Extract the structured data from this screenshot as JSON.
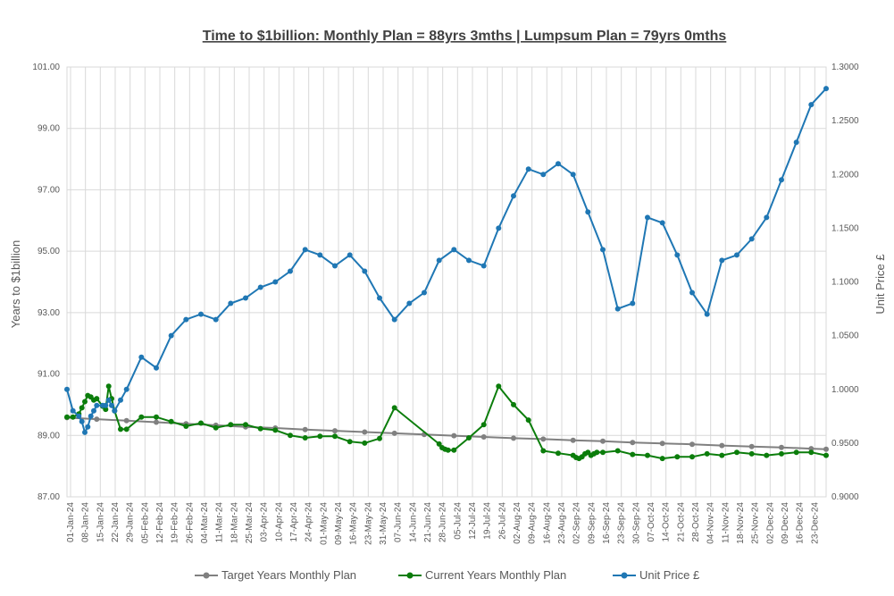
{
  "chart_data": {
    "type": "line",
    "title": "Time to $1billion: Monthly Plan = 88yrs 3mths | Lumpsum Plan = 79yrs 0mths",
    "y_left_label": "Years to $1billion",
    "y_right_label": "Unit Price £",
    "y_left_range": [
      87,
      101
    ],
    "y_right_range": [
      0.9,
      1.3
    ],
    "y_left_ticks": [
      "87.00",
      "89.00",
      "91.00",
      "93.00",
      "95.00",
      "97.00",
      "99.00",
      "101.00"
    ],
    "y_right_ticks": [
      "0.9000",
      "0.9500",
      "1.0000",
      "1.0500",
      "1.1000",
      "1.1500",
      "1.2000",
      "1.2500",
      "1.3000"
    ],
    "x_ticks": [
      "01-Jan-24",
      "08-Jan-24",
      "15-Jan-24",
      "22-Jan-24",
      "29-Jan-24",
      "05-Feb-24",
      "12-Feb-24",
      "19-Feb-24",
      "26-Feb-24",
      "04-Mar-24",
      "11-Mar-24",
      "18-Mar-24",
      "25-Mar-24",
      "03-Apr-24",
      "10-Apr-24",
      "17-Apr-24",
      "24-Apr-24",
      "01-May-24",
      "09-May-24",
      "16-May-24",
      "23-May-24",
      "31-May-24",
      "07-Jun-24",
      "14-Jun-24",
      "21-Jun-24",
      "28-Jun-24",
      "05-Jul-24",
      "12-Jul-24",
      "19-Jul-24",
      "26-Jul-24",
      "02-Aug-24",
      "09-Aug-24",
      "16-Aug-24",
      "23-Aug-24",
      "02-Sep-24",
      "09-Sep-24",
      "16-Sep-24",
      "23-Sep-24",
      "30-Sep-24",
      "07-Oct-24",
      "14-Oct-24",
      "21-Oct-24",
      "28-Oct-24",
      "04-Nov-24",
      "11-Nov-24",
      "18-Nov-24",
      "25-Nov-24",
      "02-Dec-24",
      "09-Dec-24",
      "16-Dec-24",
      "23-Dec-24"
    ],
    "grid": true,
    "legend_position": "bottom",
    "series": [
      {
        "name": "Target Years Monthly Plan",
        "axis": "left",
        "color": "#808080",
        "x": [
          0,
          10,
          20,
          30,
          40,
          50,
          60,
          70,
          80,
          90,
          100,
          110,
          120,
          130,
          140,
          150,
          160,
          170,
          180,
          190,
          200,
          210,
          220,
          230,
          240,
          250,
          255
        ],
        "values": [
          89.58,
          89.53,
          89.48,
          89.43,
          89.38,
          89.33,
          89.28,
          89.24,
          89.19,
          89.15,
          89.11,
          89.07,
          89.03,
          88.99,
          88.95,
          88.91,
          88.88,
          88.84,
          88.81,
          88.77,
          88.74,
          88.71,
          88.67,
          88.64,
          88.61,
          88.57,
          88.55
        ]
      },
      {
        "name": "Current Years Monthly Plan",
        "axis": "left",
        "color": "#0b7d0b",
        "x": [
          0,
          2,
          4,
          5,
          6,
          7,
          8,
          9,
          10,
          12,
          13,
          14,
          15,
          16,
          18,
          20,
          25,
          30,
          35,
          40,
          45,
          50,
          55,
          60,
          65,
          70,
          75,
          80,
          85,
          90,
          95,
          100,
          105,
          110,
          125,
          126,
          127,
          128,
          130,
          135,
          140,
          145,
          150,
          155,
          160,
          165,
          170,
          171,
          172,
          173,
          174,
          175,
          176,
          177,
          178,
          180,
          185,
          190,
          195,
          200,
          205,
          210,
          215,
          220,
          225,
          230,
          235,
          240,
          245,
          250,
          255
        ],
        "values": [
          89.6,
          89.6,
          89.7,
          89.9,
          90.1,
          90.3,
          90.25,
          90.15,
          90.2,
          89.95,
          89.85,
          90.6,
          90.2,
          89.8,
          89.2,
          89.2,
          89.6,
          89.6,
          89.45,
          89.3,
          89.4,
          89.25,
          89.35,
          89.35,
          89.22,
          89.17,
          89.0,
          88.92,
          88.97,
          88.97,
          88.8,
          88.75,
          88.9,
          89.9,
          88.72,
          88.6,
          88.55,
          88.52,
          88.52,
          88.92,
          89.35,
          90.6,
          90.0,
          89.5,
          88.5,
          88.42,
          88.35,
          88.28,
          88.25,
          88.3,
          88.4,
          88.45,
          88.35,
          88.4,
          88.45,
          88.45,
          88.5,
          88.38,
          88.35,
          88.25,
          88.3,
          88.3,
          88.4,
          88.35,
          88.45,
          88.4,
          88.35,
          88.4,
          88.45,
          88.45,
          88.35
        ]
      },
      {
        "name": "Unit Price £",
        "axis": "right",
        "color": "#1f77b4",
        "x": [
          0,
          2,
          4,
          5,
          6,
          7,
          8,
          9,
          10,
          12,
          13,
          14,
          15,
          16,
          18,
          20,
          25,
          30,
          35,
          40,
          45,
          50,
          55,
          60,
          65,
          70,
          75,
          80,
          85,
          90,
          95,
          100,
          105,
          110,
          115,
          120,
          125,
          130,
          135,
          140,
          145,
          150,
          155,
          160,
          165,
          170,
          175,
          180,
          185,
          190,
          195,
          200,
          205,
          210,
          215,
          220,
          225,
          230,
          235,
          240,
          245,
          250,
          255
        ],
        "values": [
          1.0,
          0.98,
          0.975,
          0.97,
          0.96,
          0.965,
          0.975,
          0.98,
          0.985,
          0.985,
          0.985,
          0.99,
          0.985,
          0.98,
          0.99,
          1.0,
          1.03,
          1.02,
          1.05,
          1.065,
          1.07,
          1.065,
          1.08,
          1.085,
          1.095,
          1.1,
          1.11,
          1.13,
          1.125,
          1.115,
          1.125,
          1.11,
          1.085,
          1.065,
          1.08,
          1.09,
          1.12,
          1.13,
          1.12,
          1.115,
          1.15,
          1.18,
          1.205,
          1.2,
          1.21,
          1.2,
          1.165,
          1.13,
          1.075,
          1.08,
          1.16,
          1.155,
          1.125,
          1.09,
          1.07,
          1.12,
          1.125,
          1.14,
          1.16,
          1.195,
          1.23,
          1.265,
          1.28
        ]
      }
    ]
  }
}
